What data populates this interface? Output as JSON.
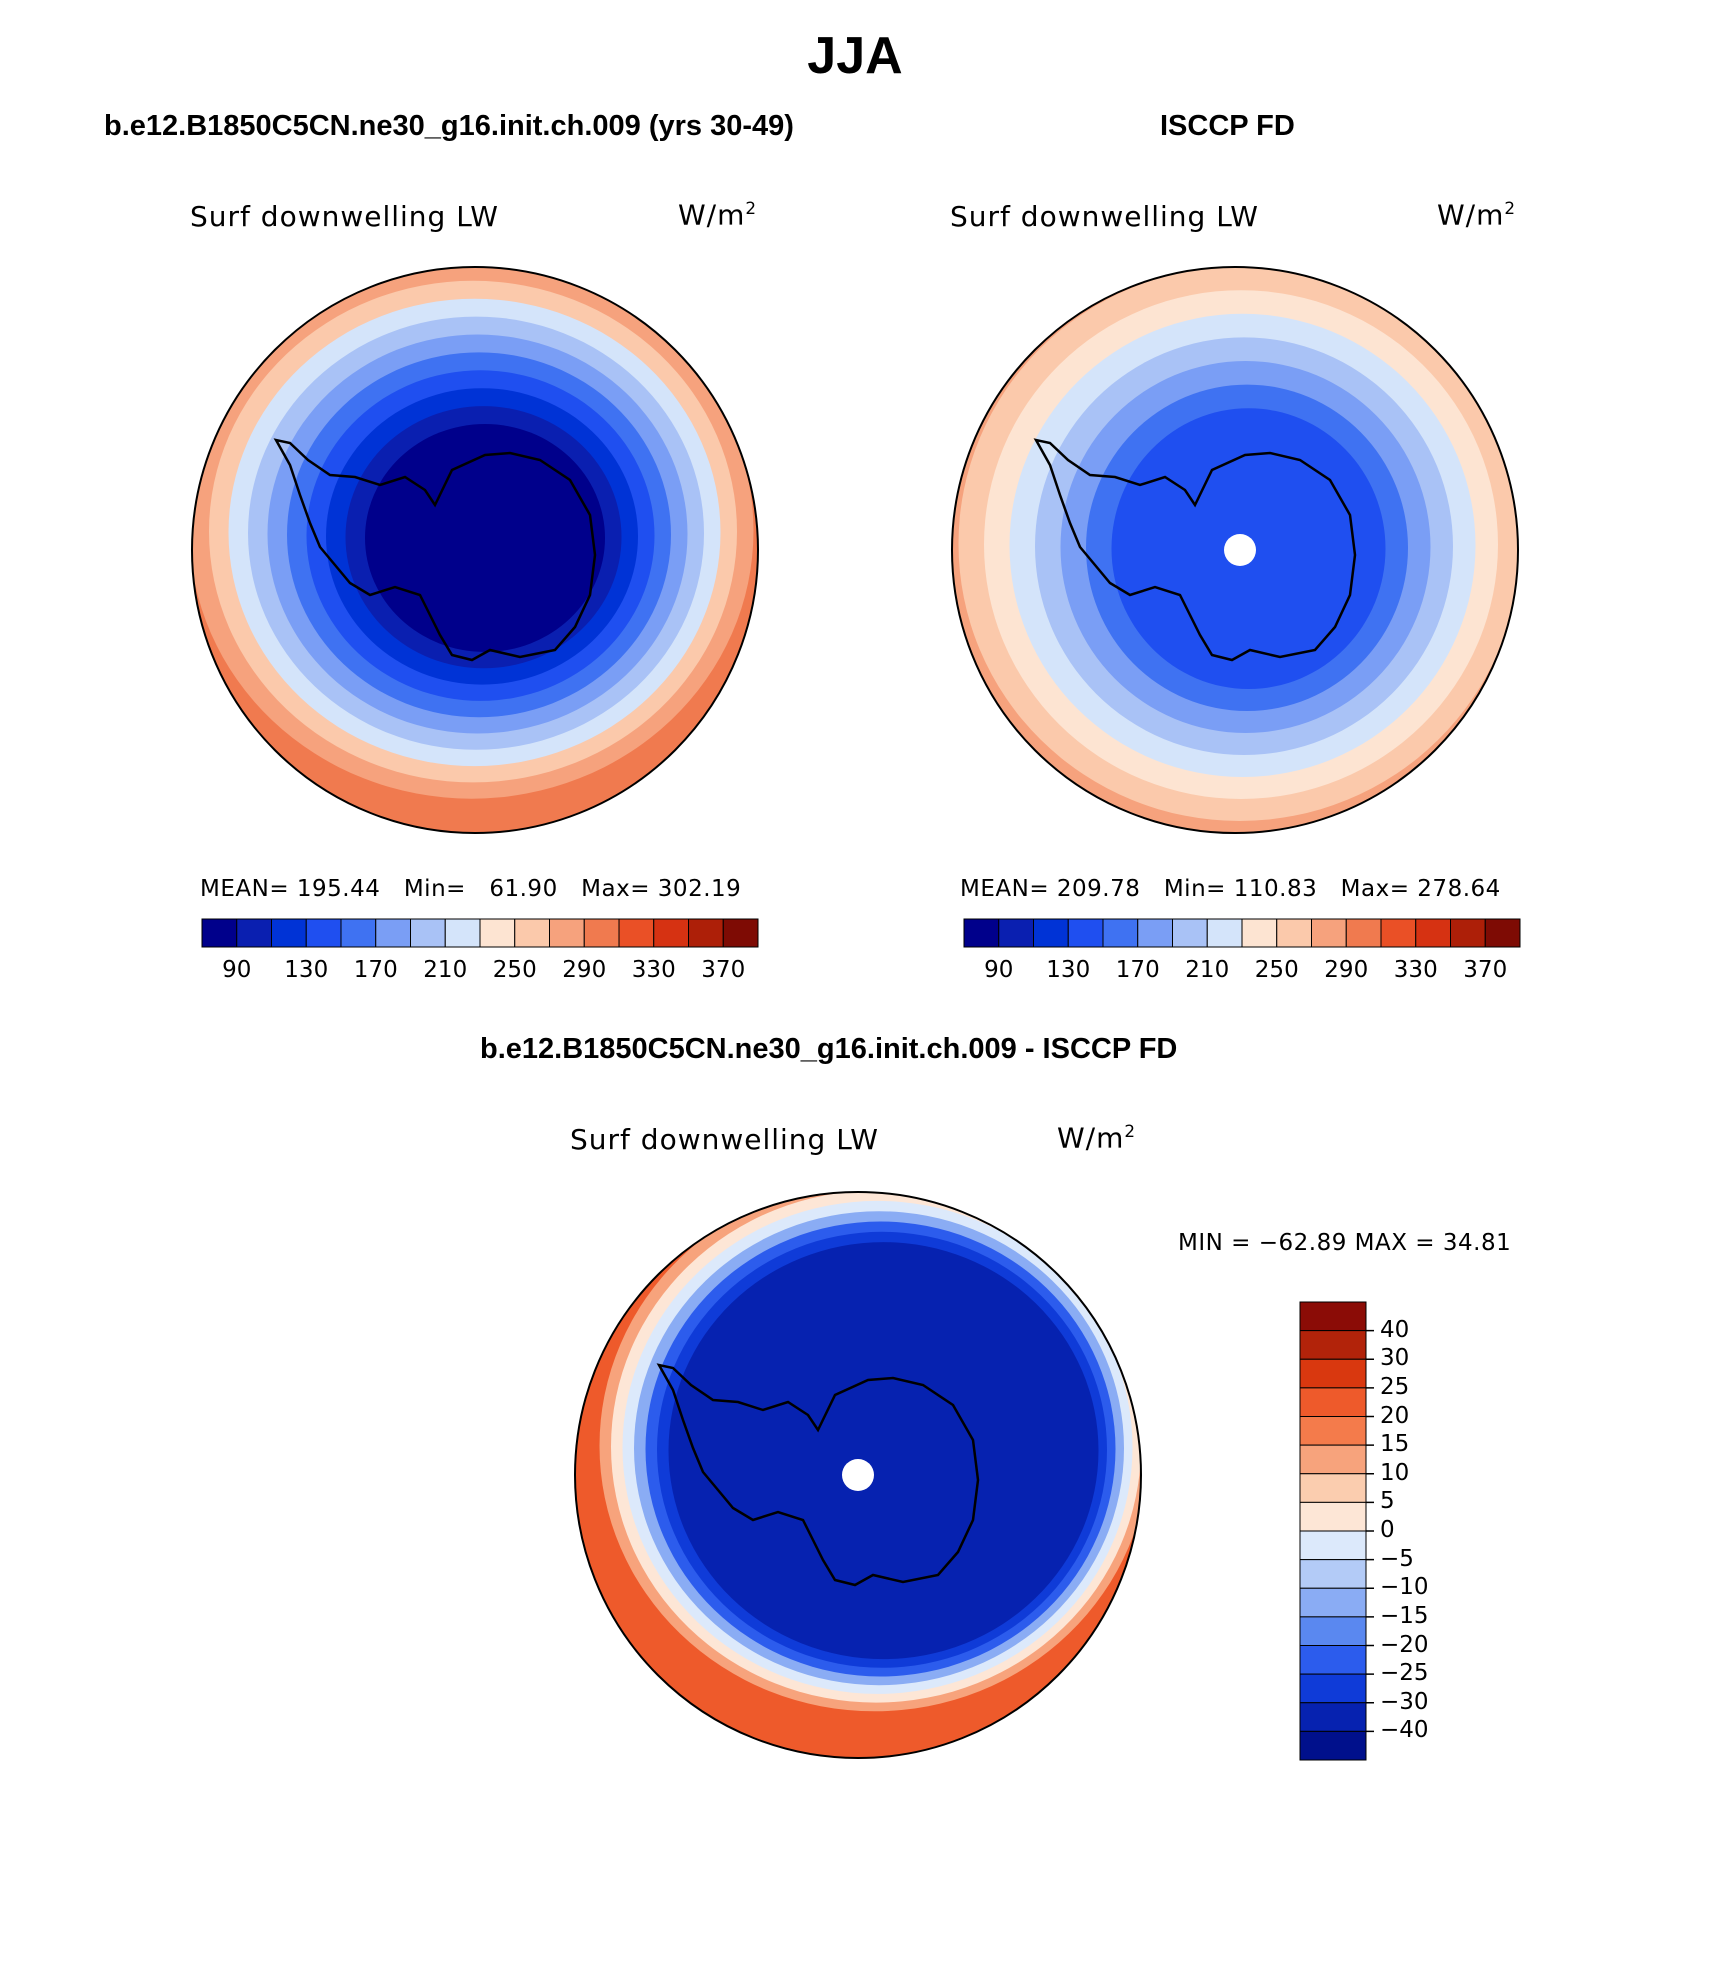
{
  "title": "JJA",
  "panels": {
    "model": {
      "header": "b.e12.B1850C5CN.ne30_g16.init.ch.009 (yrs 30-49)",
      "variable": "Surf downwelling LW",
      "units": "W/m",
      "units_exp": "2",
      "stats": {
        "mean_label": "MEAN=",
        "mean": "195.44",
        "min_label": "Min=",
        "min": "61.90",
        "max_label": "Max=",
        "max": "302.19"
      }
    },
    "obs": {
      "header": "ISCCP FD",
      "variable": "Surf downwelling LW",
      "units": "W/m",
      "units_exp": "2",
      "stats": {
        "mean_label": "MEAN=",
        "mean": "209.78",
        "min_label": "Min=",
        "min": "110.83",
        "max_label": "Max=",
        "max": "278.64"
      }
    },
    "diff": {
      "header": "b.e12.B1850C5CN.ne30_g16.init.ch.009 - ISCCP FD",
      "variable": "Surf downwelling LW",
      "units": "W/m",
      "units_exp": "2",
      "stats_text": "MIN = −62.89 MAX =   34.81"
    }
  },
  "abs_colorbar": {
    "colors": [
      "#00008b",
      "#0a1fb0",
      "#0033d6",
      "#1f4ff0",
      "#3f72f2",
      "#7a9ef5",
      "#a9c2f6",
      "#d4e4fa",
      "#fde4d2",
      "#fbc9ab",
      "#f6a27d",
      "#f07a4f",
      "#ea5026",
      "#d63212",
      "#ad1f08",
      "#7e0b04"
    ],
    "tick_labels": [
      "90",
      "130",
      "170",
      "210",
      "250",
      "290",
      "330",
      "370"
    ]
  },
  "diff_colorbar": {
    "colors_top_to_bottom": [
      "#8b0c06",
      "#b2230a",
      "#d9380f",
      "#ee5a2b",
      "#f47b4b",
      "#f7a37c",
      "#fbcdaf",
      "#fde6d6",
      "#dce9fb",
      "#b3cbf7",
      "#8aacf4",
      "#5a88f0",
      "#2c5ced",
      "#0f3bd8",
      "#0622b0",
      "#00108c"
    ],
    "tick_labels": [
      "40",
      "30",
      "25",
      "20",
      "15",
      "10",
      "5",
      "0",
      "−5",
      "−10",
      "−15",
      "−20",
      "−25",
      "−30",
      "−40"
    ]
  },
  "maps": {
    "model": {
      "rings": [
        "#f07a4f",
        "#f6a27d",
        "#fbc9ab",
        "#d4e4fa",
        "#a9c2f6",
        "#7a9ef5",
        "#3f72f2",
        "#1f4ff0",
        "#0033d6",
        "#0a1fb0",
        "#00008b"
      ]
    },
    "obs": {
      "rings": [
        "#f6a27d",
        "#fbc9ab",
        "#fde4d2",
        "#d4e4fa",
        "#a9c2f6",
        "#7a9ef5",
        "#3f72f2",
        "#1f4ff0"
      ]
    },
    "diff": {
      "rings": [
        "#ee5a2b",
        "#f7a37c",
        "#fde6d6",
        "#dce9fb",
        "#8aacf4",
        "#2c5ced",
        "#0f3bd8",
        "#0622b0"
      ]
    }
  }
}
